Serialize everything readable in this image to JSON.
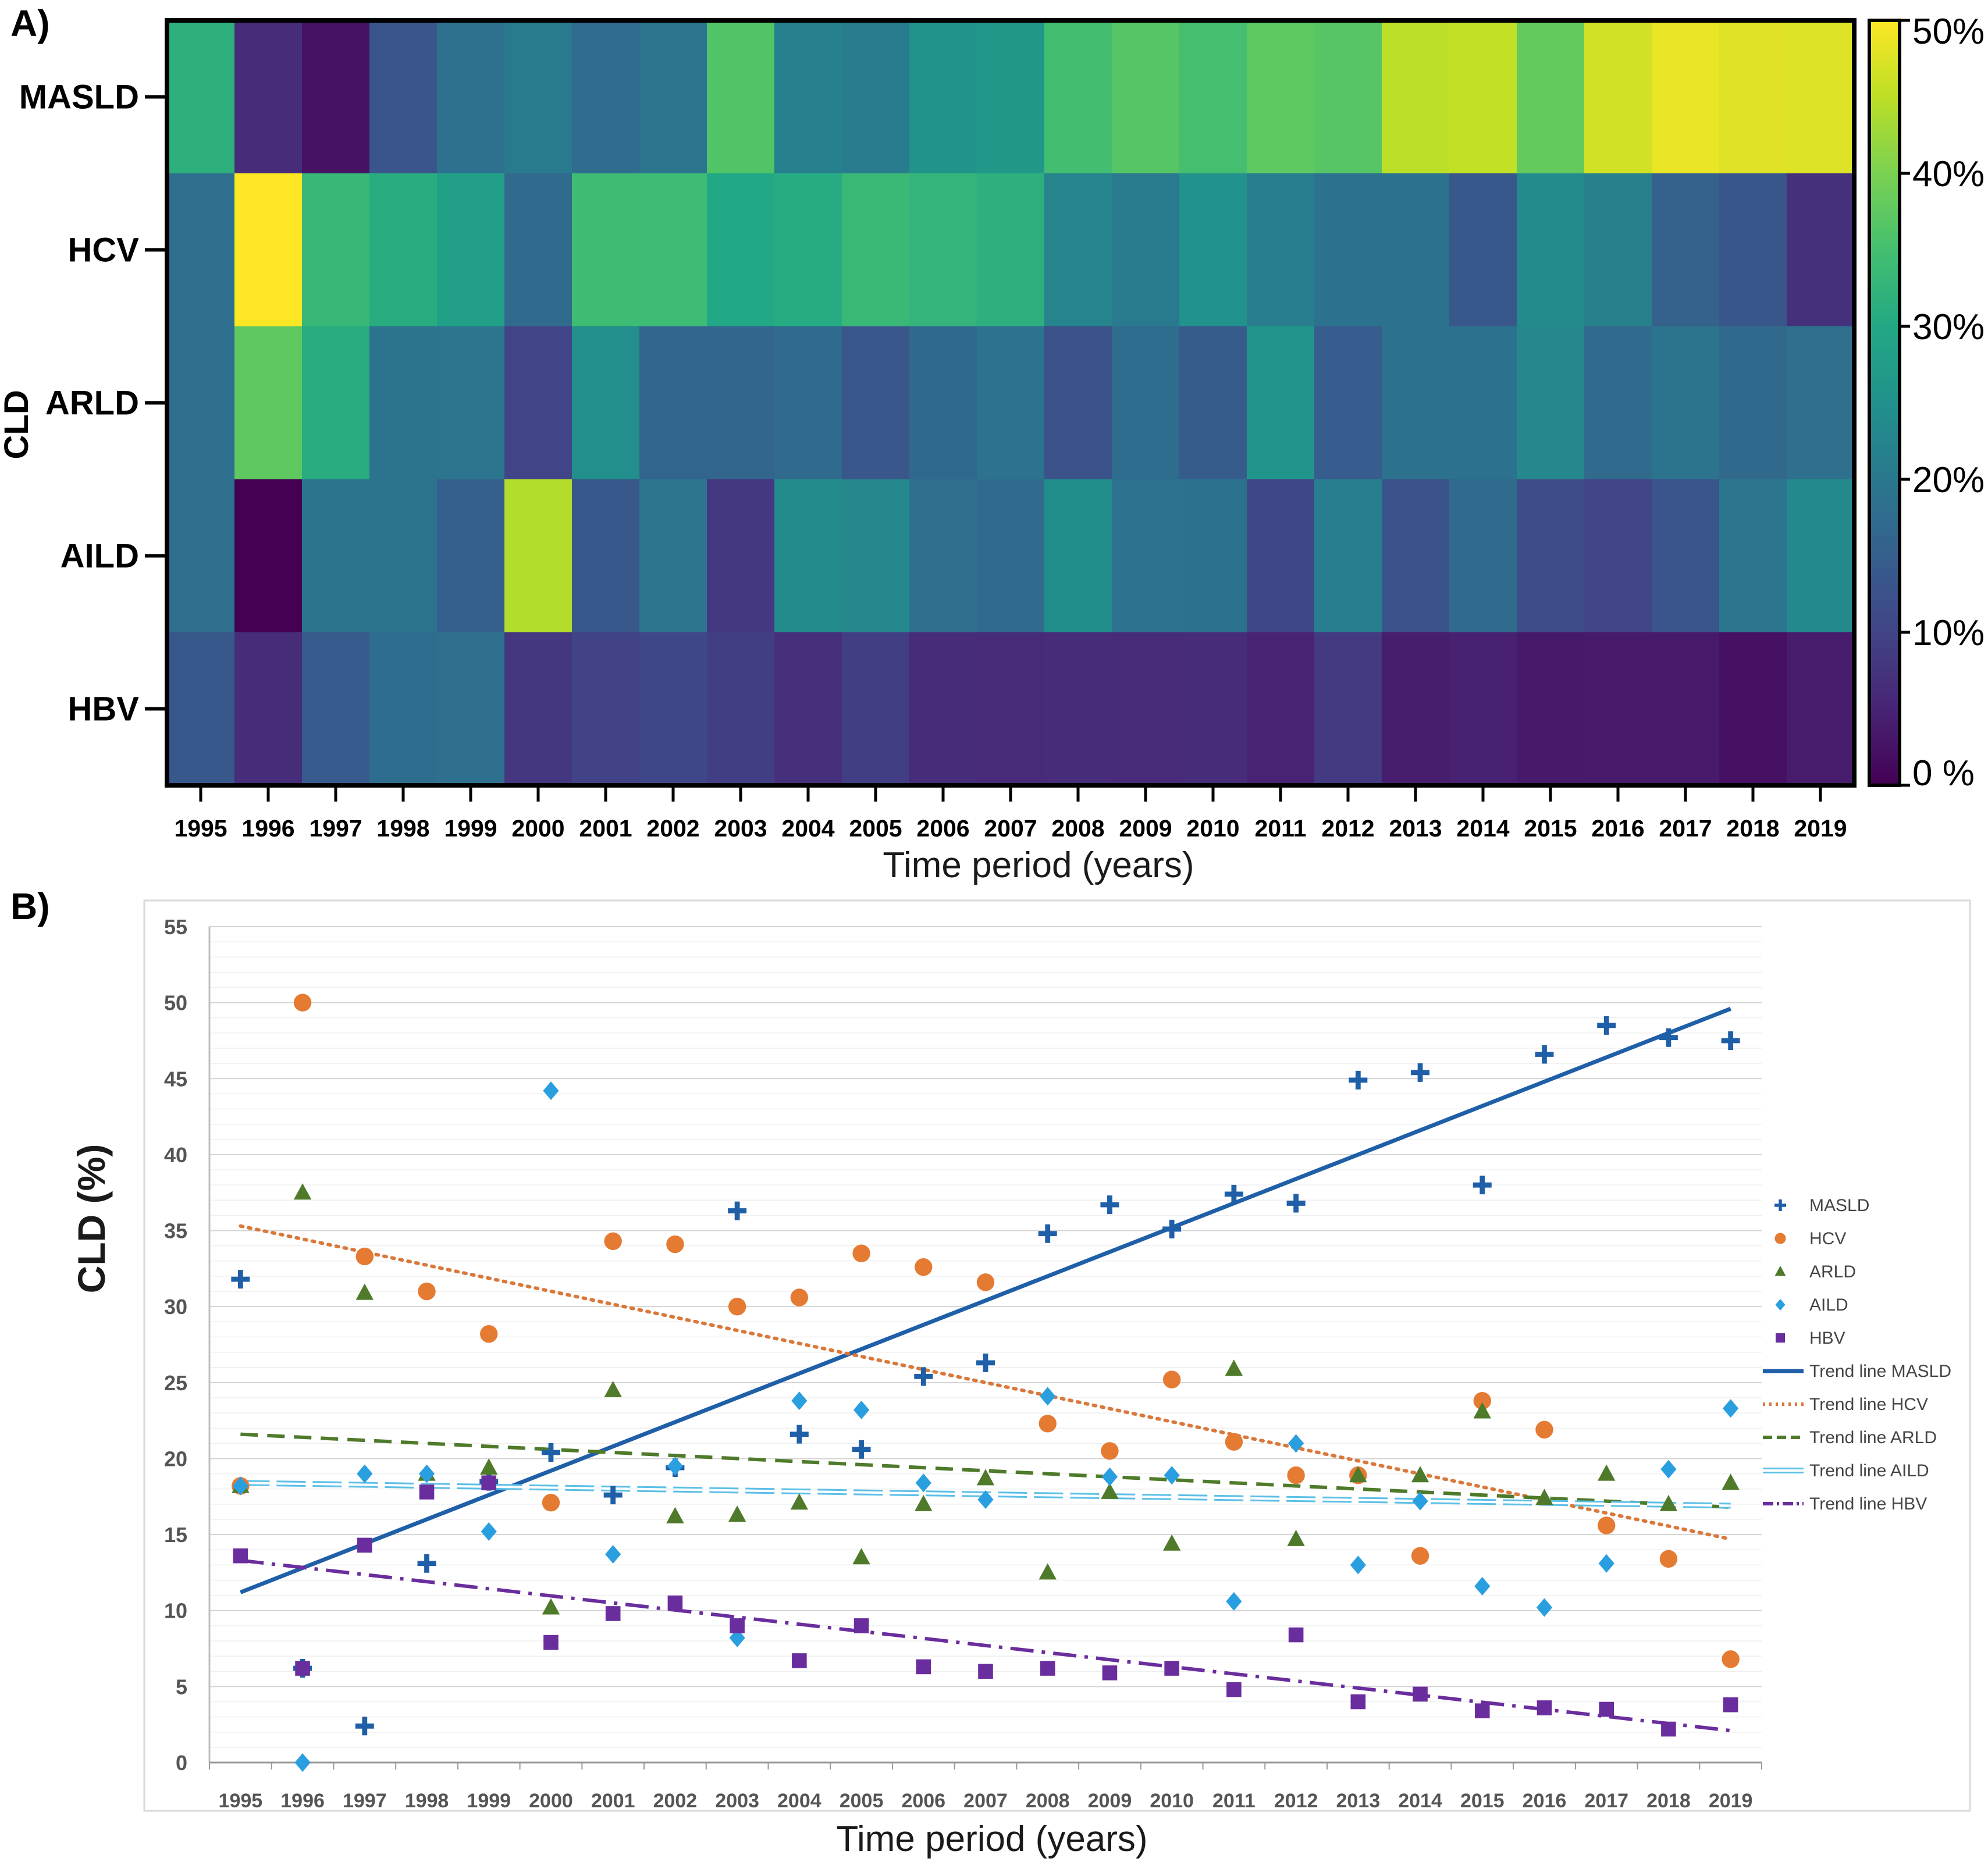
{
  "panel_a_label": "A)",
  "panel_b_label": "B)",
  "chart_data": [
    {
      "type": "heatmap",
      "ylabel": "CLD",
      "xlabel": "Time period (years)",
      "rows": [
        "MASLD",
        "HCV",
        "ARLD",
        "AILD",
        "HBV"
      ],
      "x": [
        "1995",
        "1996",
        "1997",
        "1998",
        "1999",
        "2000",
        "2001",
        "2002",
        "2003",
        "2004",
        "2005",
        "2006",
        "2007",
        "2008",
        "2009",
        "2010",
        "2011",
        "2012",
        "2013",
        "2014",
        "2015",
        "2016",
        "2017",
        "2018",
        "2019"
      ],
      "values": [
        [
          31.8,
          6.2,
          2.4,
          13.1,
          18.5,
          20.4,
          17.6,
          19.4,
          36.3,
          21.6,
          20.6,
          25.4,
          26.3,
          34.8,
          36.7,
          35.1,
          37.4,
          36.8,
          44.9,
          45.4,
          38.0,
          46.6,
          48.5,
          47.7,
          47.5
        ],
        [
          18.2,
          50.0,
          33.3,
          31.0,
          28.2,
          17.1,
          34.3,
          34.1,
          30.0,
          30.6,
          33.5,
          32.6,
          31.6,
          22.3,
          20.5,
          25.2,
          21.1,
          18.9,
          18.9,
          13.6,
          23.8,
          21.9,
          15.6,
          13.4,
          6.8
        ],
        [
          18.2,
          37.5,
          30.9,
          19.0,
          19.4,
          10.2,
          24.5,
          16.2,
          16.3,
          17.1,
          13.5,
          17.0,
          18.7,
          12.5,
          17.8,
          14.4,
          25.9,
          14.7,
          18.9,
          18.9,
          23.1,
          17.4,
          19.0,
          17.0,
          18.4
        ],
        [
          18.2,
          0.0,
          19.0,
          19.0,
          15.2,
          44.2,
          13.7,
          19.5,
          8.2,
          23.8,
          23.2,
          18.4,
          17.3,
          24.1,
          18.8,
          18.9,
          10.6,
          21.0,
          13.0,
          17.2,
          11.6,
          10.2,
          13.1,
          19.3,
          23.3
        ],
        [
          13.6,
          6.2,
          14.3,
          17.8,
          18.4,
          7.9,
          9.8,
          10.5,
          9.0,
          6.7,
          9.0,
          6.3,
          6.0,
          6.2,
          5.9,
          6.2,
          4.8,
          8.4,
          4.0,
          4.5,
          3.4,
          3.6,
          3.5,
          2.2,
          3.8
        ]
      ],
      "colorbar": {
        "min": 0,
        "max": 50,
        "ticks": [
          "0 %",
          "10%",
          "20%",
          "30%",
          "40%",
          "50%"
        ]
      },
      "colormap": "viridis"
    },
    {
      "type": "scatter",
      "ylabel": "CLD (%)",
      "xlabel": "Time period (years)",
      "ylim": [
        0,
        55
      ],
      "yticks": [
        "0",
        "5",
        "10",
        "15",
        "20",
        "25",
        "30",
        "35",
        "40",
        "45",
        "50",
        "55"
      ],
      "x": [
        "1995",
        "1996",
        "1997",
        "1998",
        "1999",
        "2000",
        "2001",
        "2002",
        "2003",
        "2004",
        "2005",
        "2006",
        "2007",
        "2008",
        "2009",
        "2010",
        "2011",
        "2012",
        "2013",
        "2014",
        "2015",
        "2016",
        "2017",
        "2018",
        "2019"
      ],
      "grid": true,
      "legend_position": "right",
      "series": [
        {
          "name": "MASLD",
          "marker": "cross",
          "color": "#1f5fa8",
          "values": [
            31.8,
            6.2,
            2.4,
            13.1,
            18.5,
            20.4,
            17.6,
            19.4,
            36.3,
            21.6,
            20.6,
            25.4,
            26.3,
            34.8,
            36.7,
            35.1,
            37.4,
            36.8,
            44.9,
            45.4,
            38.0,
            46.6,
            48.5,
            47.7,
            47.5
          ]
        },
        {
          "name": "HCV",
          "marker": "circle",
          "color": "#e57a33",
          "values": [
            18.2,
            50.0,
            33.3,
            31.0,
            28.2,
            17.1,
            34.3,
            34.1,
            30.0,
            30.6,
            33.5,
            32.6,
            31.6,
            22.3,
            20.5,
            25.2,
            21.1,
            18.9,
            18.9,
            13.6,
            23.8,
            21.9,
            15.6,
            13.4,
            6.8
          ]
        },
        {
          "name": "ARLD",
          "marker": "triangle",
          "color": "#4e7a2a",
          "values": [
            18.2,
            37.5,
            30.9,
            19.0,
            19.4,
            10.2,
            24.5,
            16.2,
            16.3,
            17.1,
            13.5,
            17.0,
            18.7,
            12.5,
            17.8,
            14.4,
            25.9,
            14.7,
            18.9,
            18.9,
            23.1,
            17.4,
            19.0,
            17.0,
            18.4
          ]
        },
        {
          "name": "AILD",
          "marker": "diamond",
          "color": "#2a9fe0",
          "values": [
            18.2,
            0.0,
            19.0,
            19.0,
            15.2,
            44.2,
            13.7,
            19.5,
            8.2,
            23.8,
            23.2,
            18.4,
            17.3,
            24.1,
            18.8,
            18.9,
            10.6,
            21.0,
            13.0,
            17.2,
            11.6,
            10.2,
            13.1,
            19.3,
            23.3
          ]
        },
        {
          "name": "HBV",
          "marker": "square",
          "color": "#6a2d9e",
          "values": [
            13.6,
            6.2,
            14.3,
            17.8,
            18.4,
            7.9,
            9.8,
            10.5,
            9.0,
            6.7,
            9.0,
            6.3,
            6.0,
            6.2,
            5.9,
            6.2,
            4.8,
            8.4,
            4.0,
            4.5,
            3.4,
            3.6,
            3.5,
            2.2,
            3.8
          ]
        }
      ],
      "trend_lines": [
        {
          "name": "Trend line MASLD",
          "style": "solid",
          "color": "#1f5fa8",
          "start": 11.2,
          "end": 49.6
        },
        {
          "name": "Trend line HCV",
          "style": "dotted",
          "color": "#d9783a",
          "start": 35.3,
          "end": 14.7
        },
        {
          "name": "Trend line ARLD",
          "style": "dashed",
          "color": "#4e7a2a",
          "start": 21.6,
          "end": 16.8
        },
        {
          "name": "Trend line AILD",
          "style": "double-dashed",
          "color": "#5bbfe6",
          "start": 18.4,
          "end": 16.9
        },
        {
          "name": "Trend line HBV",
          "style": "dash-dot",
          "color": "#6a2d9e",
          "start": 13.3,
          "end": 2.1
        }
      ]
    }
  ]
}
